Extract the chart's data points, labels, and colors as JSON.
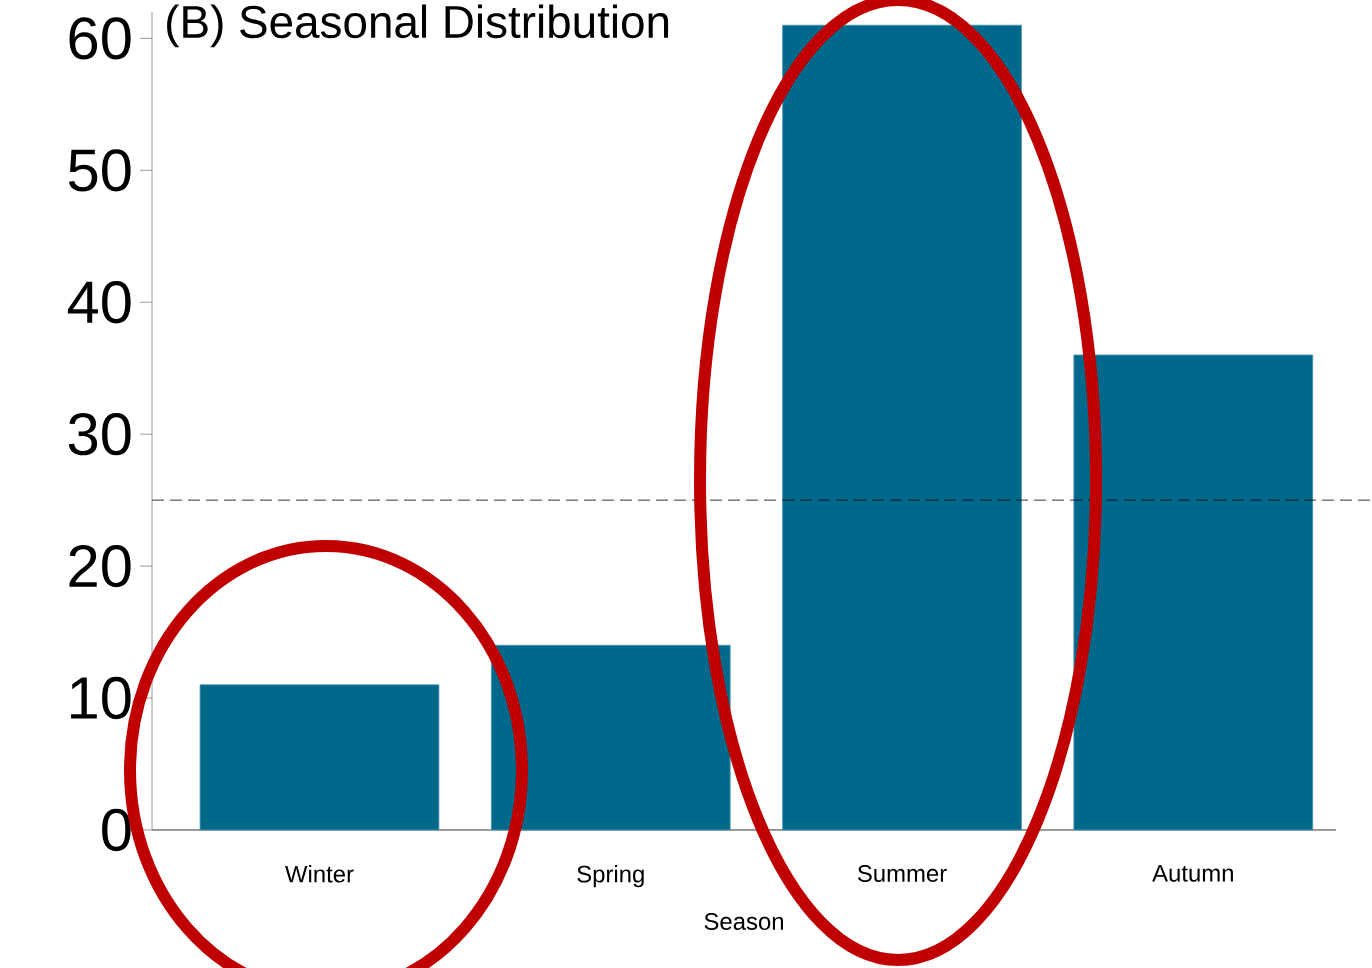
{
  "chart_data": {
    "type": "bar",
    "title": "(B)  Seasonal Distribution",
    "xlabel": "Season",
    "categories": [
      "Winter",
      "Spring",
      "Summer",
      "Autumn"
    ],
    "values": [
      11,
      14,
      61,
      36
    ],
    "color": "#00688b",
    "ylim": [
      0,
      62
    ],
    "yticks": [
      0,
      10,
      20,
      30,
      40,
      50,
      60
    ],
    "ref_lines": [
      {
        "axis": "y",
        "value": 25,
        "line_style": "dashed"
      }
    ],
    "grid": false
  }
}
